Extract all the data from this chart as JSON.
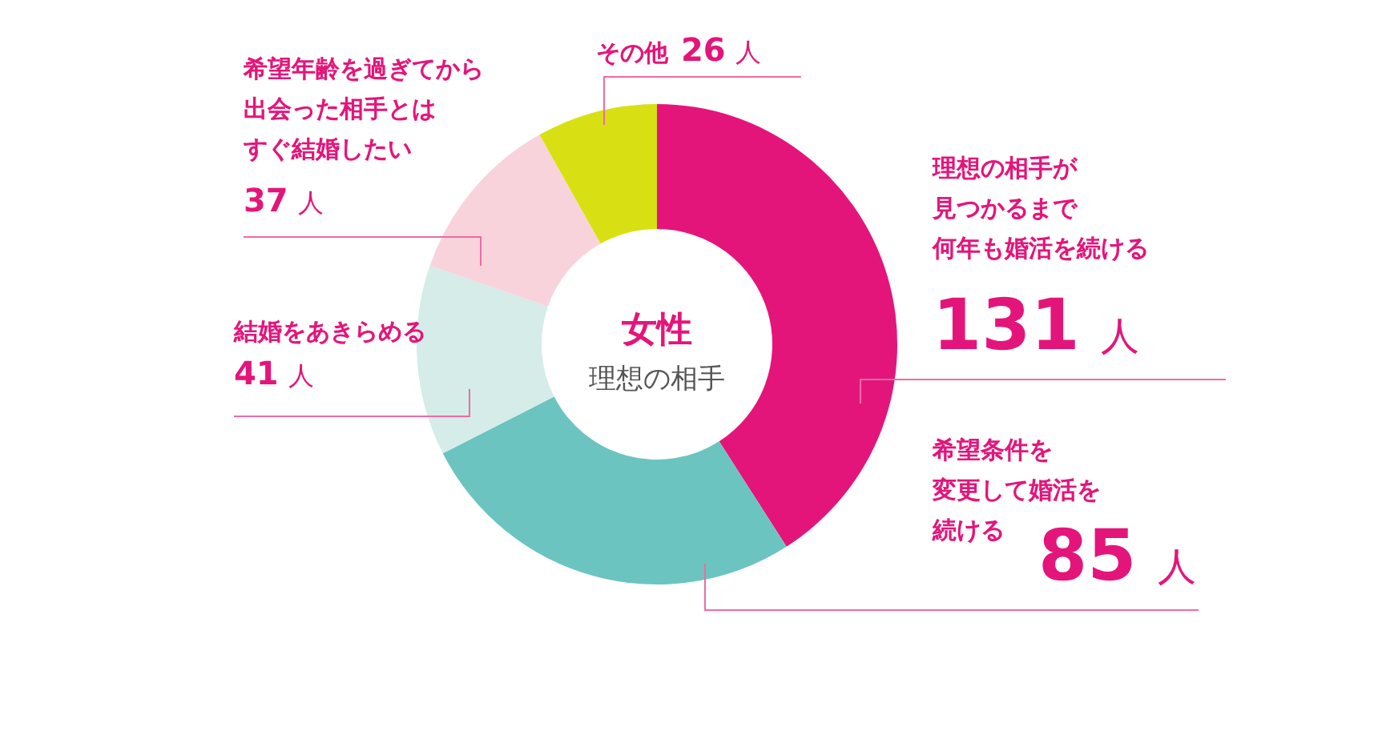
{
  "chart_data": {
    "type": "donut",
    "title": "女性",
    "subtitle": "理想の相手",
    "categories": [
      "理想の相手が見つかるまで何年も婚活を続ける",
      "希望条件を変更して婚活を続ける",
      "結婚をあきらめる",
      "希望年齢を過ぎてから出会った相手とはすぐ結婚したい",
      "その他"
    ],
    "values": [
      131,
      85,
      41,
      37,
      26
    ],
    "colors": [
      "#e4157a",
      "#6cc4c0",
      "#d5ece9",
      "#f9d3dc",
      "#d8e014"
    ],
    "value_labels": [
      "131 人",
      "85 人",
      "41 人",
      "37 人",
      "26 人"
    ]
  }
}
